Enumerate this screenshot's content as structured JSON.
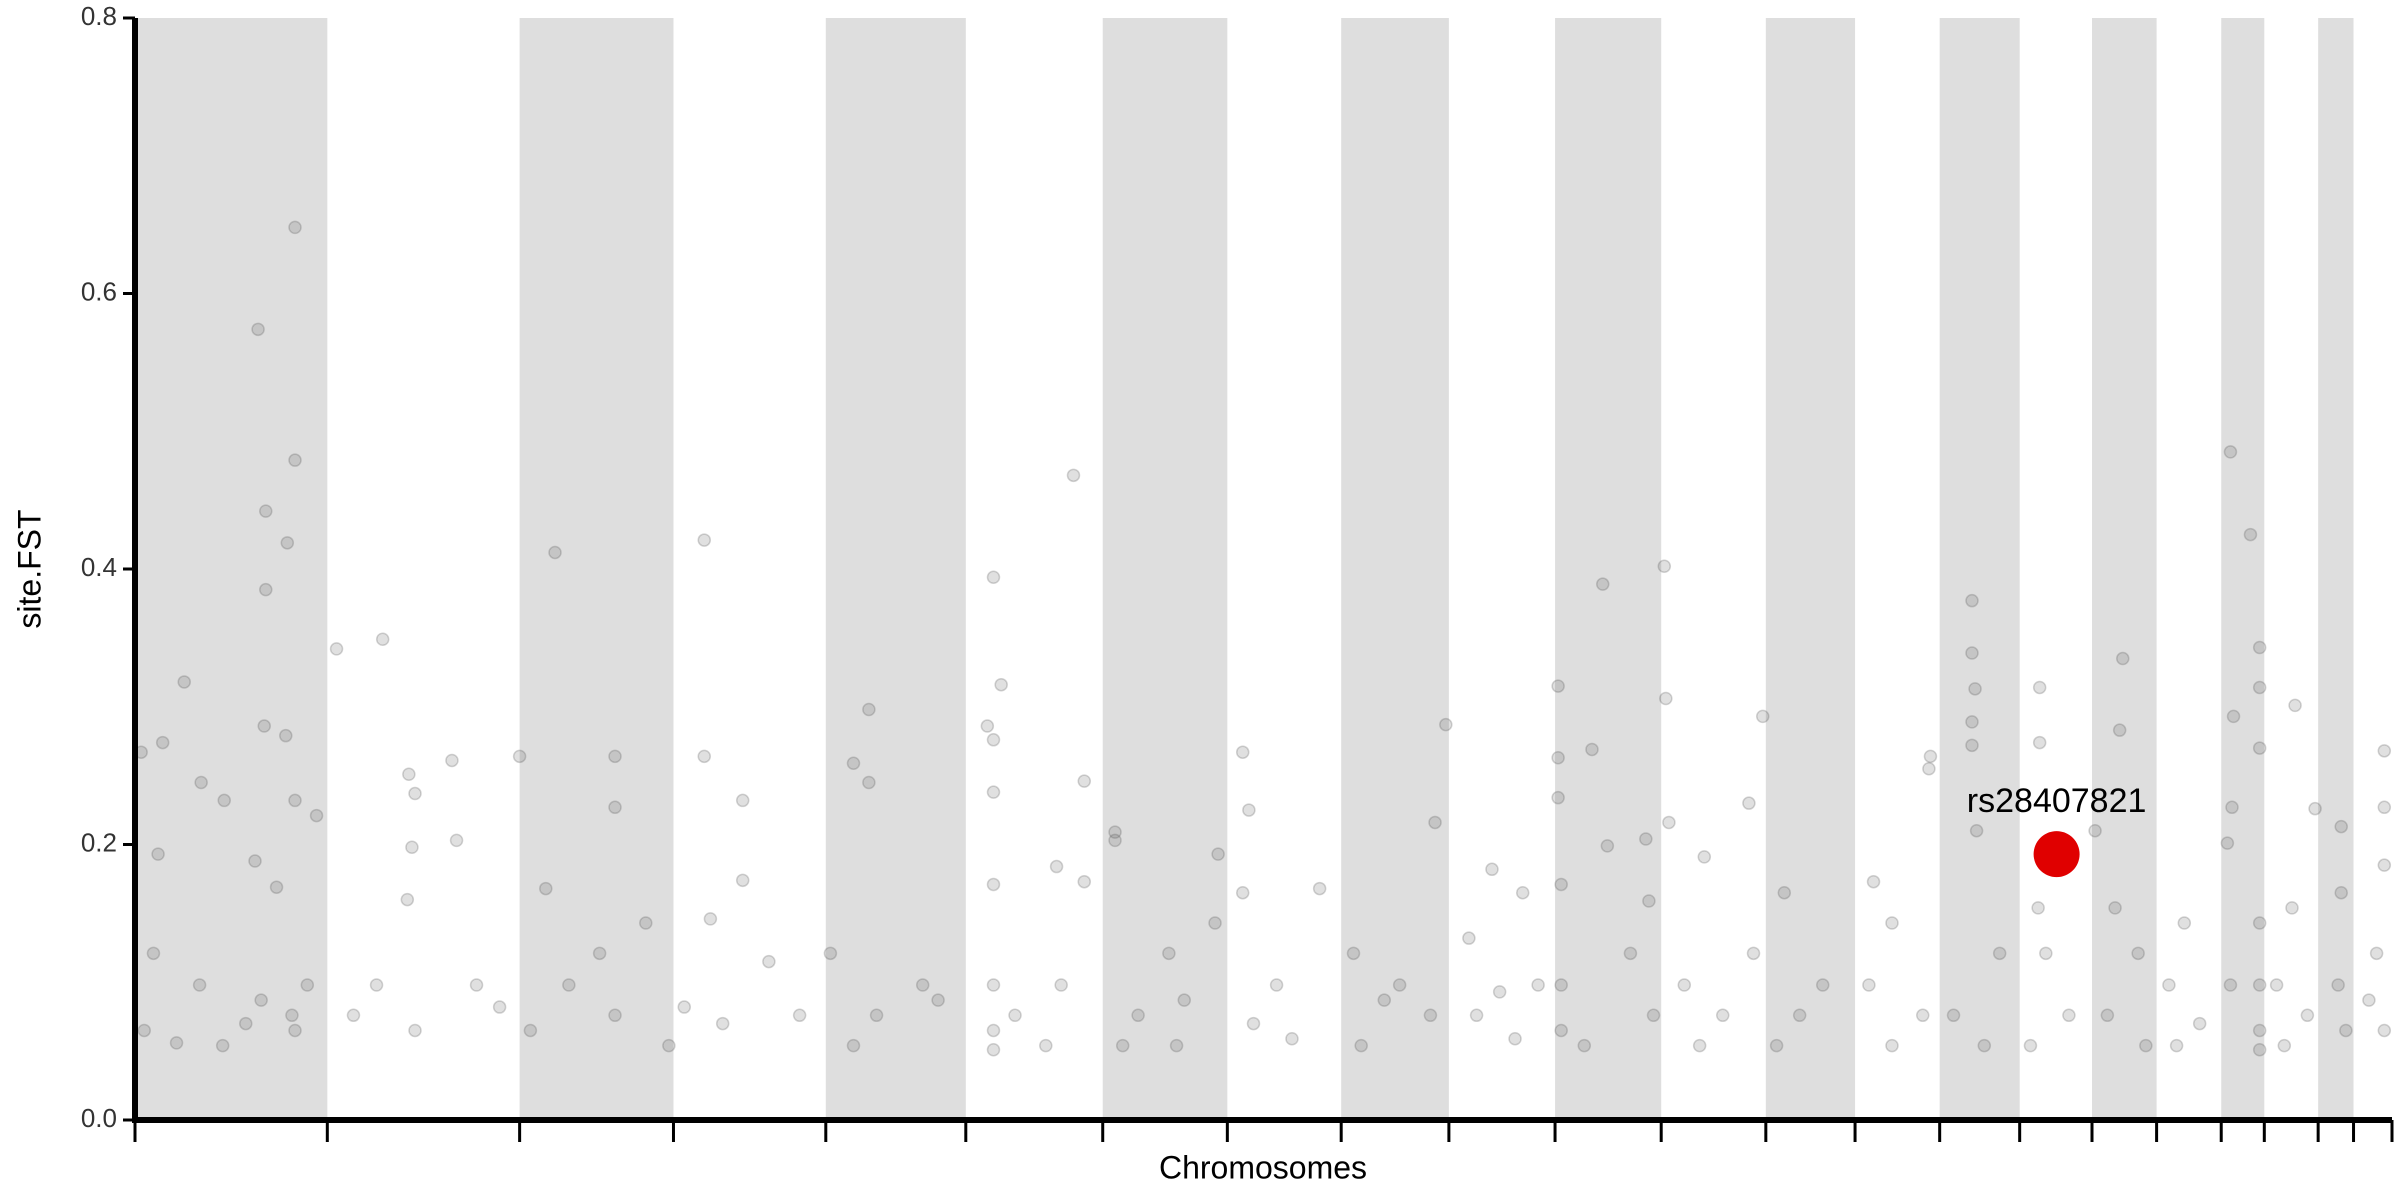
{
  "chart_data": {
    "type": "scatter",
    "x_label": "Chromosomes",
    "y_label": "site.FST",
    "x": [
      160,
      208,
      208,
      170,
      198,
      170,
      168,
      196,
      64,
      8,
      36,
      86,
      116,
      30,
      208,
      236,
      156,
      184,
      24,
      84,
      164,
      204,
      12,
      54,
      144,
      224,
      208,
      114,
      262,
      322,
      356,
      412,
      364,
      418,
      360,
      284,
      364,
      444,
      474,
      354,
      314,
      546,
      500,
      624,
      624,
      534,
      664,
      564,
      624,
      514,
      694,
      604,
      740,
      740,
      790,
      790,
      748,
      824,
      764,
      864,
      714,
      954,
      934,
      954,
      904,
      1024,
      964,
      934,
      1044,
      1116,
      1126,
      1108,
      1116,
      1116,
      1116,
      1116,
      1116,
      1116,
      1220,
      1234,
      1198,
      1234,
      1144,
      1204,
      1184,
      1274,
      1274,
      1344,
      1404,
      1304,
      1364,
      1284,
      1354,
      1440,
      1448,
      1440,
      1408,
      1484,
      1540,
      1454,
      1504,
      1690,
      1704,
      1584,
      1624,
      1594,
      1684,
      1644,
      1734,
      1764,
      1804,
      1744,
      1794,
      1824,
      1774,
      1850,
      1850,
      1850,
      1894,
      1908,
      1854,
      1854,
      1854,
      1914,
      1944,
      1974,
      1884,
      1988,
      1990,
      1994,
      1964,
      1968,
      2040,
      2014,
      2064,
      2034,
      2116,
      2098,
      2144,
      2104,
      2194,
      2164,
      2134,
      2260,
      2284,
      2254,
      2324,
      2284,
      2388,
      2388,
      2392,
      2388,
      2388,
      2334,
      2332,
      2394,
      2424,
      2364,
      2404,
      2476,
      2476,
      2474,
      2484,
      2514,
      2464,
      2584,
      2580,
      2548,
      2574,
      2604,
      2564,
      2614,
      2664,
      2644,
      2684,
      2654,
      2724,
      2750,
      2762,
      2762,
      2728,
      2762,
      2726,
      2720,
      2762,
      2762,
      2762,
      2762,
      2724,
      2808,
      2834,
      2804,
      2784,
      2824,
      2794,
      2868,
      2868,
      2864,
      2874,
      2924,
      2924,
      2924,
      2914,
      2904,
      2924
    ],
    "values": [
      0.574,
      0.648,
      0.479,
      0.442,
      0.419,
      0.385,
      0.286,
      0.279,
      0.318,
      0.267,
      0.274,
      0.245,
      0.232,
      0.193,
      0.232,
      0.221,
      0.188,
      0.169,
      0.121,
      0.098,
      0.087,
      0.076,
      0.065,
      0.056,
      0.07,
      0.098,
      0.065,
      0.054,
      0.342,
      0.349,
      0.251,
      0.261,
      0.237,
      0.203,
      0.198,
      0.076,
      0.065,
      0.098,
      0.082,
      0.16,
      0.098,
      0.412,
      0.264,
      0.264,
      0.227,
      0.168,
      0.143,
      0.098,
      0.076,
      0.065,
      0.054,
      0.121,
      0.421,
      0.264,
      0.232,
      0.174,
      0.146,
      0.115,
      0.07,
      0.076,
      0.082,
      0.298,
      0.259,
      0.245,
      0.121,
      0.098,
      0.076,
      0.054,
      0.087,
      0.394,
      0.316,
      0.286,
      0.276,
      0.238,
      0.171,
      0.098,
      0.065,
      0.051,
      0.468,
      0.246,
      0.184,
      0.173,
      0.076,
      0.098,
      0.054,
      0.209,
      0.203,
      0.121,
      0.143,
      0.076,
      0.087,
      0.054,
      0.054,
      0.267,
      0.225,
      0.165,
      0.193,
      0.098,
      0.168,
      0.07,
      0.059,
      0.216,
      0.287,
      0.121,
      0.087,
      0.054,
      0.076,
      0.098,
      0.132,
      0.182,
      0.165,
      0.076,
      0.059,
      0.098,
      0.093,
      0.315,
      0.263,
      0.234,
      0.269,
      0.389,
      0.171,
      0.098,
      0.065,
      0.199,
      0.121,
      0.076,
      0.054,
      0.402,
      0.306,
      0.216,
      0.204,
      0.159,
      0.191,
      0.098,
      0.076,
      0.054,
      0.293,
      0.23,
      0.165,
      0.121,
      0.098,
      0.076,
      0.054,
      0.173,
      0.143,
      0.098,
      0.076,
      0.054,
      0.377,
      0.339,
      0.313,
      0.289,
      0.272,
      0.264,
      0.255,
      0.21,
      0.121,
      0.076,
      0.054,
      0.314,
      0.274,
      0.154,
      0.121,
      0.076,
      0.054,
      0.335,
      0.283,
      0.21,
      0.154,
      0.121,
      0.076,
      0.054,
      0.143,
      0.098,
      0.07,
      0.054,
      0.485,
      0.425,
      0.343,
      0.314,
      0.293,
      0.27,
      0.227,
      0.201,
      0.143,
      0.098,
      0.065,
      0.051,
      0.098,
      0.301,
      0.226,
      0.154,
      0.098,
      0.076,
      0.054,
      0.213,
      0.165,
      0.098,
      0.065,
      0.268,
      0.227,
      0.185,
      0.121,
      0.087,
      0.065
    ],
    "color": "#555555",
    "alpha": 0.18,
    "band_color": "#dedede",
    "highlight": {
      "label": "rs28407821",
      "x": 2498,
      "y": 0.193,
      "color": "#e00000"
    },
    "xlim": [
      0,
      2934
    ],
    "xticks": [
      0,
      250,
      500,
      700,
      898,
      1080,
      1258,
      1420,
      1568,
      1708,
      1846,
      1984,
      2120,
      2236,
      2346,
      2450,
      2544,
      2628,
      2712,
      2768,
      2838,
      2884,
      2934
    ],
    "ylim": [
      0,
      0.8
    ],
    "yticks": [
      {
        "value": 0,
        "label": "0.0"
      },
      0.2,
      0.4,
      0.6,
      0.8
    ]
  }
}
